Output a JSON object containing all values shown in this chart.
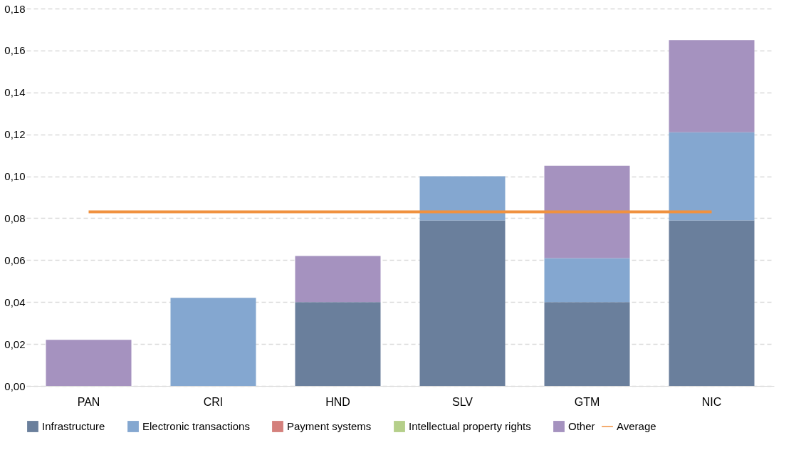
{
  "chart_data": {
    "type": "bar",
    "stacked": true,
    "categories": [
      "PAN",
      "CRI",
      "HND",
      "SLV",
      "GTM",
      "NIC"
    ],
    "series": [
      {
        "name": "Infrastructure",
        "color": "#6a7f9c",
        "values": [
          0,
          0,
          0.04,
          0.079,
          0.04,
          0.079
        ]
      },
      {
        "name": "Electronic transactions",
        "color": "#84a7d0",
        "values": [
          0,
          0.042,
          0,
          0.021,
          0.021,
          0.042
        ]
      },
      {
        "name": "Payment systems",
        "color": "#d4807c",
        "values": [
          0,
          0,
          0,
          0,
          0,
          0
        ]
      },
      {
        "name": "Intellectual property rights",
        "color": "#b5cf8a",
        "values": [
          0,
          0,
          0,
          0,
          0,
          0
        ]
      },
      {
        "name": "Other",
        "color": "#a592bf",
        "values": [
          0.022,
          0,
          0.022,
          0,
          0.044,
          0.044
        ]
      },
      {
        "name": "Average",
        "type": "line",
        "color": "#f0913f",
        "values": [
          0.083,
          0.083,
          0.083,
          0.083,
          0.083,
          0.083
        ]
      }
    ],
    "ylim": [
      0,
      0.18
    ],
    "yticks": [
      {
        "value": 0,
        "label": "0,00"
      },
      {
        "value": 0.02,
        "label": "0,02"
      },
      {
        "value": 0.04,
        "label": "0,04"
      },
      {
        "value": 0.06,
        "label": "0,06"
      },
      {
        "value": 0.08,
        "label": "0,08"
      },
      {
        "value": 0.1,
        "label": "0,10"
      },
      {
        "value": 0.12,
        "label": "0,12"
      },
      {
        "value": 0.14,
        "label": "0,14"
      },
      {
        "value": 0.16,
        "label": "0,16"
      },
      {
        "value": 0.18,
        "label": "0,18"
      }
    ],
    "grid": "y",
    "legend": "bottom",
    "line_style": "solid",
    "marker": "none"
  }
}
